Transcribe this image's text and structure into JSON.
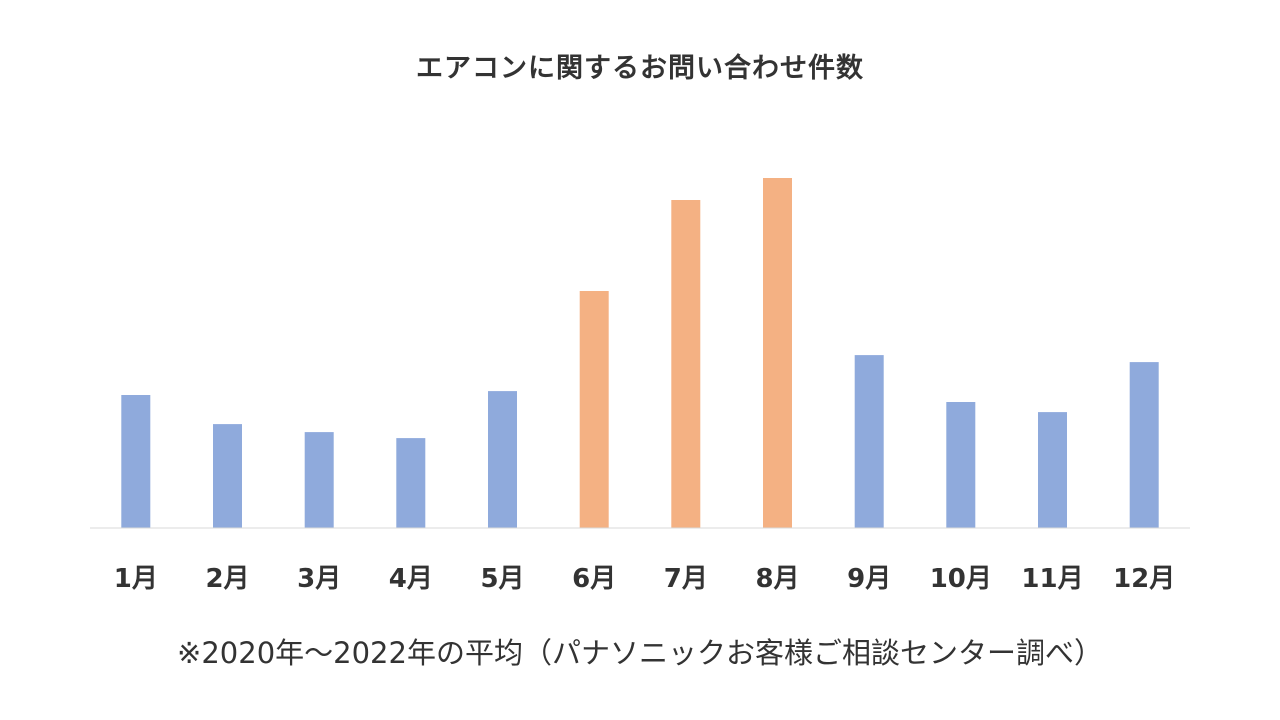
{
  "chart_data": {
    "type": "bar",
    "title": "エアコンに関するお問い合わせ件数",
    "note": "※2020年～2022年の平均（パナソニックお客様ご相談センター調べ）",
    "categories": [
      "1月",
      "2月",
      "3月",
      "4月",
      "5月",
      "6月",
      "7月",
      "8月",
      "9月",
      "10月",
      "11月",
      "12月"
    ],
    "values": [
      38,
      29.7,
      27.4,
      25.7,
      39.1,
      67.7,
      93.7,
      100,
      49.4,
      36,
      33.1,
      47.4
    ],
    "ylim": [
      0,
      100
    ],
    "highlight_months": [
      "6月",
      "7月",
      "8月"
    ],
    "colors": {
      "normal": "#8FAADC",
      "highlight": "#F4B183",
      "axis": "#D9D9D9"
    },
    "xlabel": "",
    "ylabel": "",
    "grid": false,
    "legend": "none"
  }
}
